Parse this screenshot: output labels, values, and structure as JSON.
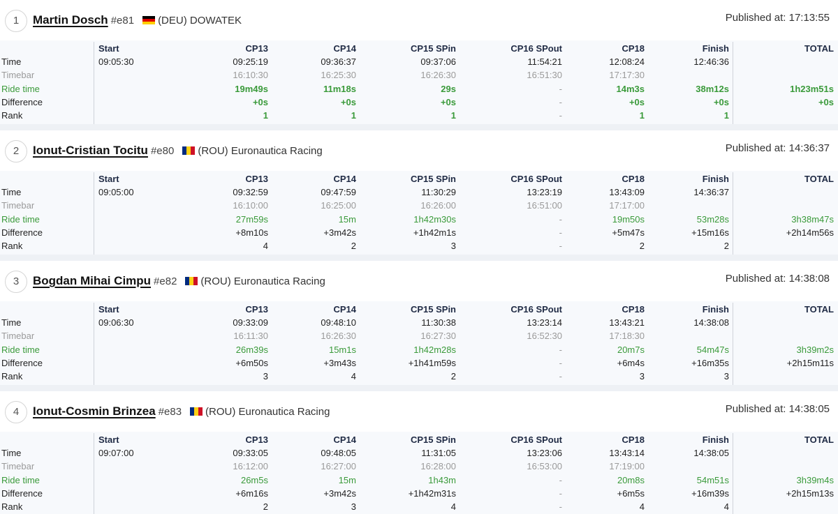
{
  "columns": [
    "Start",
    "CP13",
    "CP14",
    "CP15 SPin",
    "CP16 SPout",
    "CP18",
    "Finish",
    "TOTAL"
  ],
  "row_labels": [
    "Time",
    "Timebar",
    "Ride time",
    "Difference",
    "Rank"
  ],
  "published_prefix": "Published at: ",
  "colors": {
    "ride_time": "#3a9a3a",
    "timebar": "#9a9a9a",
    "header": "#1f2a44"
  },
  "riders": [
    {
      "position": "1",
      "name": "Martin Dosch",
      "number": "#e81",
      "flag": "DEU",
      "team": "(DEU) DOWATEK",
      "published": "17:13:55",
      "time": [
        "09:05:30",
        "09:25:19",
        "09:36:37",
        "09:37:06",
        "11:54:21",
        "12:08:24",
        "12:46:36",
        ""
      ],
      "timebar": [
        "",
        "16:10:30",
        "16:25:30",
        "16:26:30",
        "16:51:30",
        "17:17:30",
        "",
        ""
      ],
      "ride_time": [
        "",
        "19m49s",
        "11m18s",
        "29s",
        "-",
        "14m3s",
        "38m12s",
        "1h23m51s"
      ],
      "difference": [
        "",
        "+0s",
        "+0s",
        "+0s",
        "-",
        "+0s",
        "+0s",
        "+0s"
      ],
      "rank": [
        "",
        "1",
        "1",
        "1",
        "-",
        "1",
        "1",
        ""
      ]
    },
    {
      "position": "2",
      "name": "Ionut-Cristian Tocitu",
      "number": "#e80",
      "flag": "ROU",
      "team": "(ROU) Euronautica Racing",
      "published": "14:36:37",
      "time": [
        "09:05:00",
        "09:32:59",
        "09:47:59",
        "11:30:29",
        "13:23:19",
        "13:43:09",
        "14:36:37",
        ""
      ],
      "timebar": [
        "",
        "16:10:00",
        "16:25:00",
        "16:26:00",
        "16:51:00",
        "17:17:00",
        "",
        ""
      ],
      "ride_time": [
        "",
        "27m59s",
        "15m",
        "1h42m30s",
        "-",
        "19m50s",
        "53m28s",
        "3h38m47s"
      ],
      "difference": [
        "",
        "+8m10s",
        "+3m42s",
        "+1h42m1s",
        "-",
        "+5m47s",
        "+15m16s",
        "+2h14m56s"
      ],
      "rank": [
        "",
        "4",
        "2",
        "3",
        "-",
        "2",
        "2",
        ""
      ]
    },
    {
      "position": "3",
      "name": "Bogdan Mihai Cimpu",
      "number": "#e82",
      "flag": "ROU",
      "team": "(ROU) Euronautica Racing",
      "published": "14:38:08",
      "time": [
        "09:06:30",
        "09:33:09",
        "09:48:10",
        "11:30:38",
        "13:23:14",
        "13:43:21",
        "14:38:08",
        ""
      ],
      "timebar": [
        "",
        "16:11:30",
        "16:26:30",
        "16:27:30",
        "16:52:30",
        "17:18:30",
        "",
        ""
      ],
      "ride_time": [
        "",
        "26m39s",
        "15m1s",
        "1h42m28s",
        "-",
        "20m7s",
        "54m47s",
        "3h39m2s"
      ],
      "difference": [
        "",
        "+6m50s",
        "+3m43s",
        "+1h41m59s",
        "-",
        "+6m4s",
        "+16m35s",
        "+2h15m11s"
      ],
      "rank": [
        "",
        "3",
        "4",
        "2",
        "-",
        "3",
        "3",
        ""
      ]
    },
    {
      "position": "4",
      "name": "Ionut-Cosmin Brinzea",
      "number": "#e83",
      "flag": "ROU",
      "team": "(ROU) Euronautica Racing",
      "published": "14:38:05",
      "time": [
        "09:07:00",
        "09:33:05",
        "09:48:05",
        "11:31:05",
        "13:23:06",
        "13:43:14",
        "14:38:05",
        ""
      ],
      "timebar": [
        "",
        "16:12:00",
        "16:27:00",
        "16:28:00",
        "16:53:00",
        "17:19:00",
        "",
        ""
      ],
      "ride_time": [
        "",
        "26m5s",
        "15m",
        "1h43m",
        "-",
        "20m8s",
        "54m51s",
        "3h39m4s"
      ],
      "difference": [
        "",
        "+6m16s",
        "+3m42s",
        "+1h42m31s",
        "-",
        "+6m5s",
        "+16m39s",
        "+2h15m13s"
      ],
      "rank": [
        "",
        "2",
        "3",
        "4",
        "-",
        "4",
        "4",
        ""
      ]
    }
  ]
}
